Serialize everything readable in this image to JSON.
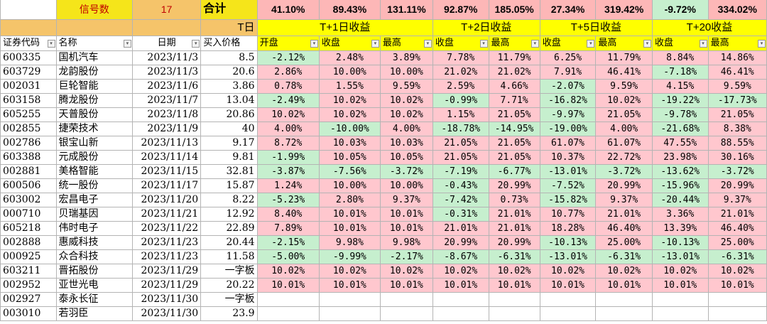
{
  "summary": {
    "signal_label": "信号数",
    "signal_count": "17",
    "total_label": "合计",
    "totals": [
      "41.10%",
      "89.43%",
      "131.11%",
      "92.87%",
      "185.05%",
      "27.34%",
      "319.42%",
      "-9.72%",
      "334.02%"
    ]
  },
  "groups": {
    "t_day": "T日",
    "t1": "T+1日收益",
    "t2": "T+2日收益",
    "t5": "T+5日收益",
    "t20": "T+20收益"
  },
  "headers": [
    "证券代码",
    "名称",
    "日期",
    "买入价格",
    "开盘",
    "收盘",
    "最高",
    "收盘",
    "最高",
    "收盘",
    "最高",
    "收盘",
    "最高"
  ],
  "rows": [
    {
      "code": "600335",
      "name": "国机汽车",
      "date": "2023/11/3",
      "price": "8.5",
      "v": [
        "-2.12%",
        "2.48%",
        "3.89%",
        "7.78%",
        "11.79%",
        "6.25%",
        "11.79%",
        "8.84%",
        "14.86%"
      ]
    },
    {
      "code": "603729",
      "name": "龙韵股份",
      "date": "2023/11/3",
      "price": "20.6",
      "v": [
        "2.86%",
        "10.00%",
        "10.00%",
        "21.02%",
        "21.02%",
        "7.91%",
        "46.41%",
        "-7.18%",
        "46.41%"
      ]
    },
    {
      "code": "002031",
      "name": "巨轮智能",
      "date": "2023/11/6",
      "price": "3.86",
      "v": [
        "0.78%",
        "1.55%",
        "9.59%",
        "2.59%",
        "4.66%",
        "-2.07%",
        "9.59%",
        "4.15%",
        "9.59%"
      ]
    },
    {
      "code": "603158",
      "name": "腾龙股份",
      "date": "2023/11/7",
      "price": "13.04",
      "v": [
        "-2.49%",
        "10.02%",
        "10.02%",
        "-0.99%",
        "7.71%",
        "-16.82%",
        "10.02%",
        "-19.22%",
        "-17.73%"
      ]
    },
    {
      "code": "605255",
      "name": "天普股份",
      "date": "2023/11/8",
      "price": "20.86",
      "v": [
        "10.02%",
        "10.02%",
        "10.02%",
        "1.15%",
        "21.05%",
        "-9.97%",
        "21.05%",
        "-9.78%",
        "21.05%"
      ]
    },
    {
      "code": "002855",
      "name": "捷荣技术",
      "date": "2023/11/9",
      "price": "40",
      "v": [
        "4.00%",
        "-10.00%",
        "4.00%",
        "-18.78%",
        "-14.95%",
        "-19.00%",
        "4.00%",
        "-21.68%",
        "8.38%"
      ]
    },
    {
      "code": "002786",
      "name": "银宝山新",
      "date": "2023/11/13",
      "price": "9.17",
      "v": [
        "8.72%",
        "10.03%",
        "10.03%",
        "21.05%",
        "21.05%",
        "61.07%",
        "61.07%",
        "47.55%",
        "88.55%"
      ]
    },
    {
      "code": "603388",
      "name": "元成股份",
      "date": "2023/11/14",
      "price": "9.81",
      "v": [
        "-1.99%",
        "10.05%",
        "10.05%",
        "21.05%",
        "21.05%",
        "10.37%",
        "22.72%",
        "23.98%",
        "30.16%"
      ]
    },
    {
      "code": "002881",
      "name": "美格智能",
      "date": "2023/11/15",
      "price": "32.81",
      "v": [
        "-3.87%",
        "-7.56%",
        "-3.72%",
        "-7.19%",
        "-6.77%",
        "-13.01%",
        "-3.72%",
        "-13.62%",
        "-3.72%"
      ]
    },
    {
      "code": "600506",
      "name": "统一股份",
      "date": "2023/11/17",
      "price": "15.87",
      "v": [
        "1.24%",
        "10.00%",
        "10.00%",
        "-0.43%",
        "20.99%",
        "-7.52%",
        "20.99%",
        "-15.96%",
        "20.99%"
      ]
    },
    {
      "code": "603002",
      "name": "宏昌电子",
      "date": "2023/11/20",
      "price": "8.22",
      "v": [
        "-5.23%",
        "2.80%",
        "9.37%",
        "-7.42%",
        "0.73%",
        "-15.82%",
        "9.37%",
        "-20.44%",
        "9.37%"
      ]
    },
    {
      "code": "000710",
      "name": "贝瑞基因",
      "date": "2023/11/21",
      "price": "12.92",
      "v": [
        "8.40%",
        "10.01%",
        "10.01%",
        "-0.31%",
        "21.01%",
        "10.77%",
        "21.01%",
        "3.36%",
        "21.01%"
      ]
    },
    {
      "code": "605218",
      "name": "伟时电子",
      "date": "2023/11/22",
      "price": "22.89",
      "v": [
        "7.89%",
        "10.01%",
        "10.01%",
        "21.01%",
        "21.01%",
        "18.28%",
        "46.40%",
        "13.39%",
        "46.40%"
      ]
    },
    {
      "code": "002888",
      "name": "惠威科技",
      "date": "2023/11/23",
      "price": "20.44",
      "v": [
        "-2.15%",
        "9.98%",
        "9.98%",
        "20.99%",
        "20.99%",
        "-10.13%",
        "25.00%",
        "-10.13%",
        "25.00%"
      ]
    },
    {
      "code": "000925",
      "name": "众合科技",
      "date": "2023/11/23",
      "price": "11.58",
      "v": [
        "-5.00%",
        "-9.99%",
        "-2.17%",
        "-8.67%",
        "-6.31%",
        "-13.01%",
        "-6.31%",
        "-13.01%",
        "-6.31%"
      ]
    },
    {
      "code": "603211",
      "name": "晋拓股份",
      "date": "2023/11/29",
      "price": "一字板",
      "v": [
        "10.02%",
        "10.02%",
        "10.02%",
        "10.02%",
        "10.02%",
        "10.02%",
        "10.02%",
        "10.02%",
        "10.02%"
      ]
    },
    {
      "code": "002952",
      "name": "亚世光电",
      "date": "2023/11/29",
      "price": "20.22",
      "v": [
        "10.01%",
        "10.01%",
        "10.01%",
        "10.01%",
        "10.01%",
        "10.01%",
        "10.01%",
        "10.01%",
        "10.01%"
      ]
    },
    {
      "code": "002927",
      "name": "泰永长征",
      "date": "2023/11/30",
      "price": "一字板",
      "v": []
    },
    {
      "code": "003010",
      "name": "若羽臣",
      "date": "2023/11/30",
      "price": "23.9",
      "v": []
    }
  ],
  "colors": {
    "positive": "#ffc7ce",
    "negative": "#c6efce",
    "header_yellow": "#ffff00",
    "orange": "#f5c46a"
  }
}
